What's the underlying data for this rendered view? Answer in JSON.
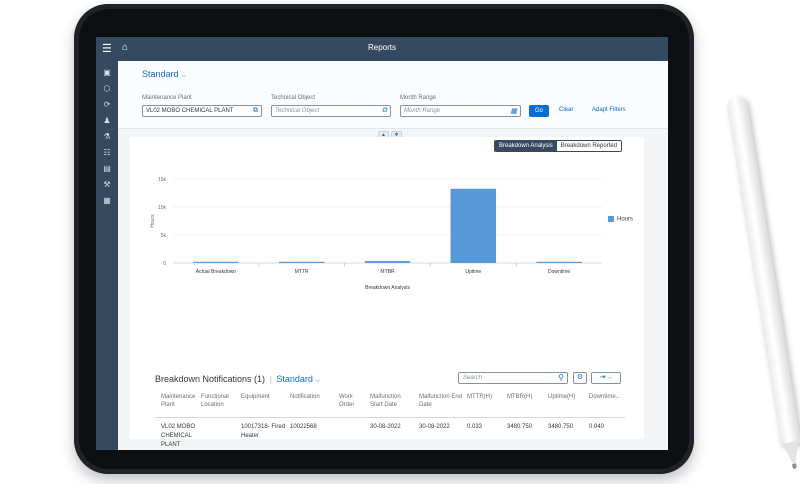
{
  "app": {
    "title": "Reports"
  },
  "variant": {
    "label": "Standard"
  },
  "filters": {
    "plant": {
      "label": "Maintenance Plant",
      "value": "VL02 MOBO CHEMICAL PLANT"
    },
    "technical_object": {
      "label": "Technical Object",
      "placeholder": "Technical Object"
    },
    "month_range": {
      "label": "Month Range",
      "placeholder": "Month Range"
    }
  },
  "buttons": {
    "go": "Go",
    "clear": "Clear",
    "adapt_filters": "Adapt Filters"
  },
  "view_toggle": {
    "active": "Breakdown Analysis",
    "inactive": "Breakdown Reported"
  },
  "chart_data": {
    "type": "bar",
    "categories": [
      "Actual Breakdown",
      "MTTR",
      "MTBR",
      "Uptime",
      "Downtime"
    ],
    "values": [
      33,
      33,
      345,
      13250,
      40
    ],
    "series": [
      {
        "name": "Hours",
        "values": [
          33,
          33,
          345,
          13250,
          40
        ],
        "color": "#5899da"
      }
    ],
    "xlabel": "Breakdown Analysis",
    "ylabel": "Hours",
    "yticks": [
      "0",
      "5k",
      "10k",
      "15k"
    ],
    "ylim": [
      0,
      15000
    ],
    "legend": "top-right"
  },
  "table": {
    "title": "Breakdown Notifications (1)",
    "variant": "Standard",
    "search_placeholder": "Search",
    "columns": [
      "Maintenance Plant",
      "Functional Location",
      "Equipment",
      "Notification",
      "Work Order",
      "Malfunction Start Date",
      "Malfunction End Date",
      "MTTR(H)",
      "MTBR(H)",
      "Uptime(H)",
      "Downtime..."
    ],
    "rows": [
      {
        "plant": "VL02 MOBO CHEMICAL PLANT",
        "functional_location": "",
        "equipment": "10017318- Fired Heater",
        "notification": "10022568",
        "work_order": "",
        "start_date": "30-08-2022",
        "end_date": "30-08-2022",
        "mttr": "0.033",
        "mtbr": "3480.750",
        "uptime": "3480.750",
        "downtime": "0.040"
      }
    ]
  },
  "colors": {
    "shell": "#354a5f",
    "accent": "#0a6ed1",
    "bar": "#5899da"
  }
}
